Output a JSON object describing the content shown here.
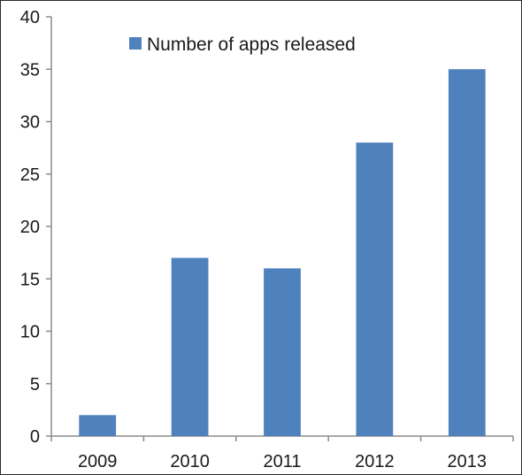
{
  "chart_data": {
    "type": "bar",
    "categories": [
      "2009",
      "2010",
      "2011",
      "2012",
      "2013"
    ],
    "series": [
      {
        "name": "Number of apps released",
        "values": [
          2,
          17,
          16,
          28,
          35
        ],
        "color": "#4f81bd"
      }
    ],
    "ylim": [
      0,
      40
    ],
    "yticks": [
      0,
      5,
      10,
      15,
      20,
      25,
      30,
      35,
      40
    ],
    "grid": false,
    "legend_position": "top-center"
  }
}
